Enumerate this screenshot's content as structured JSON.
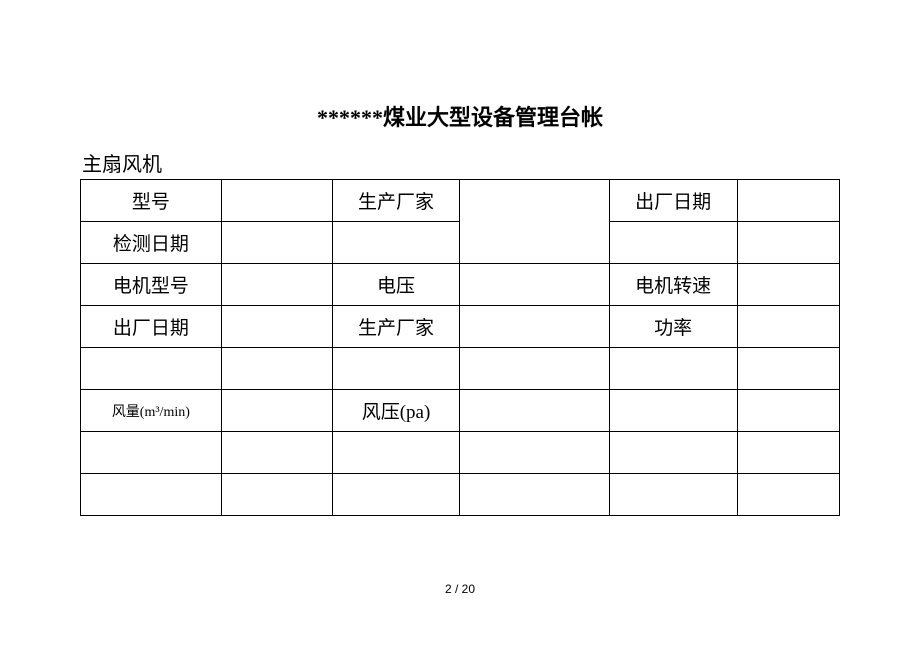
{
  "title": "******煤业大型设备管理台帐",
  "subtitle": "主扇风机",
  "table": {
    "r1": {
      "c1": "型号",
      "c3": "生产厂家",
      "c5": "出厂日期"
    },
    "r2": {
      "c1": "检测日期"
    },
    "r3": {
      "c1": "电机型号",
      "c3": "电压",
      "c5": "电机转速"
    },
    "r4": {
      "c1": "出厂日期",
      "c3": "生产厂家",
      "c5": "功率"
    },
    "r5": {
      "c1": ""
    },
    "r6": {
      "c1": "风量(m³/min)",
      "c3": "风压(pa)"
    },
    "r7": {
      "c1": ""
    },
    "r8": {
      "c1": ""
    }
  },
  "page_number": "2 / 20",
  "colors": {
    "border": "#000000",
    "text": "#000000",
    "background": "#ffffff"
  },
  "fontsize": {
    "title": 22,
    "subtitle": 20,
    "cell": 19,
    "cell_small": 14,
    "footer": 12
  }
}
